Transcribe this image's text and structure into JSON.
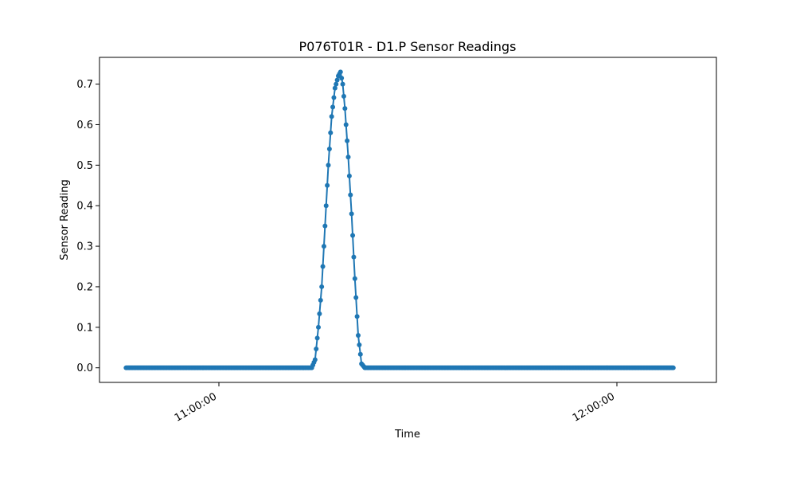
{
  "chart_data": {
    "type": "line",
    "title": "P076T01R - D1.P Sensor Readings",
    "xlabel": "Time",
    "ylabel": "Sensor Reading",
    "x_type": "time",
    "xlim": [
      "10:42:00",
      "12:15:00"
    ],
    "ylim": [
      -0.036,
      0.766
    ],
    "grid": false,
    "legend": "none",
    "color": "#1f77b4",
    "marker": "circle",
    "x_ticks": [
      "11:00:00",
      "12:00:00"
    ],
    "y_ticks": [
      "0.0",
      "0.1",
      "0.2",
      "0.3",
      "0.4",
      "0.5",
      "0.6",
      "0.7"
    ],
    "series_range": [
      "10:46:00",
      "12:08:30"
    ],
    "points": [
      [
        "10:46:00",
        0.0
      ],
      [
        "11:14:00",
        0.0
      ],
      [
        "11:14:30",
        0.02
      ],
      [
        "11:15:00",
        0.1
      ],
      [
        "11:15:30",
        0.2
      ],
      [
        "11:16:00",
        0.35
      ],
      [
        "11:16:30",
        0.5
      ],
      [
        "11:17:00",
        0.62
      ],
      [
        "11:17:30",
        0.69
      ],
      [
        "11:18:00",
        0.72
      ],
      [
        "11:18:20",
        0.73
      ],
      [
        "11:18:40",
        0.7
      ],
      [
        "11:19:00",
        0.64
      ],
      [
        "11:19:30",
        0.52
      ],
      [
        "11:20:00",
        0.38
      ],
      [
        "11:20:30",
        0.22
      ],
      [
        "11:21:00",
        0.08
      ],
      [
        "11:21:30",
        0.01
      ],
      [
        "11:22:00",
        0.0
      ],
      [
        "12:08:30",
        0.0
      ]
    ]
  }
}
